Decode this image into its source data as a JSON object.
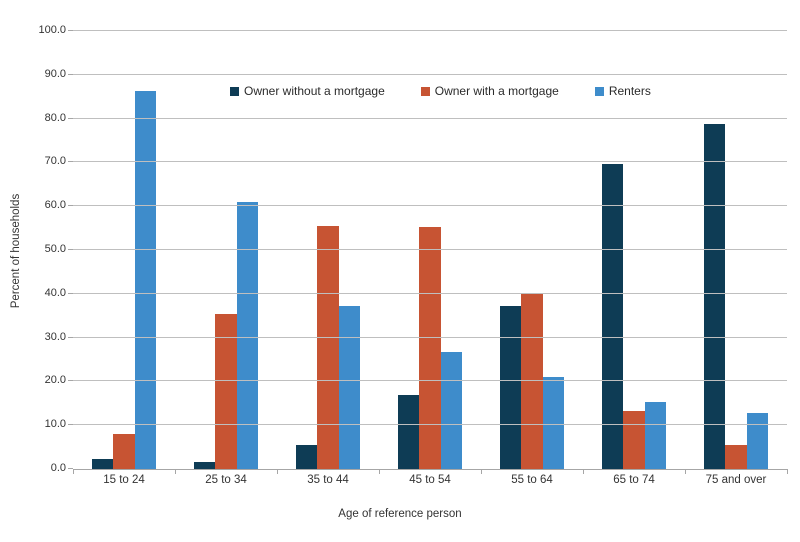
{
  "chart_data": {
    "type": "bar",
    "title": "",
    "categories": [
      "15 to 24",
      "25 to 34",
      "35 to 44",
      "45 to 54",
      "55 to 64",
      "65 to 74",
      "75 and over"
    ],
    "series": [
      {
        "name": "Owner without a mortgage",
        "color": "#0e3c55",
        "values": [
          2.4,
          1.5,
          5.5,
          16.8,
          37.3,
          69.7,
          78.7
        ]
      },
      {
        "name": "Owner with a mortgage",
        "color": "#c75433",
        "values": [
          8.0,
          35.4,
          55.5,
          55.2,
          40.3,
          13.2,
          5.5
        ]
      },
      {
        "name": "Renters",
        "color": "#3e8ccb",
        "values": [
          86.2,
          60.9,
          37.3,
          26.7,
          21.0,
          15.3,
          12.7
        ]
      }
    ],
    "xlabel": "Age of reference person",
    "ylabel": "Percent of households",
    "ylim": [
      0,
      100
    ],
    "ytick_step": 10,
    "ytick_labels": [
      "0.0",
      "10.0",
      "20.0",
      "30.0",
      "40.0",
      "50.0",
      "60.0",
      "70.0",
      "80.0",
      "90.0",
      "100.0"
    ],
    "grid": true,
    "legend_position": "top-center-inside"
  },
  "colors": {
    "gridline": "#bfbfbf",
    "axis": "#a6a6a6",
    "text": "#333333",
    "background": "#ffffff"
  }
}
